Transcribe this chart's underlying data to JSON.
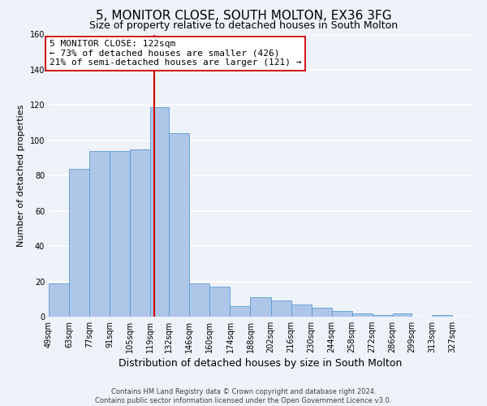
{
  "title": "5, MONITOR CLOSE, SOUTH MOLTON, EX36 3FG",
  "subtitle": "Size of property relative to detached houses in South Molton",
  "xlabel": "Distribution of detached houses by size in South Molton",
  "ylabel": "Number of detached properties",
  "bin_labels": [
    "49sqm",
    "63sqm",
    "77sqm",
    "91sqm",
    "105sqm",
    "119sqm",
    "132sqm",
    "146sqm",
    "160sqm",
    "174sqm",
    "188sqm",
    "202sqm",
    "216sqm",
    "230sqm",
    "244sqm",
    "258sqm",
    "272sqm",
    "286sqm",
    "299sqm",
    "313sqm",
    "327sqm"
  ],
  "bin_edges": [
    49,
    63,
    77,
    91,
    105,
    119,
    132,
    146,
    160,
    174,
    188,
    202,
    216,
    230,
    244,
    258,
    272,
    286,
    299,
    313,
    327
  ],
  "bar_heights": [
    19,
    84,
    94,
    94,
    95,
    119,
    104,
    19,
    17,
    6,
    11,
    9,
    7,
    5,
    3,
    2,
    1,
    2,
    0,
    1,
    0
  ],
  "bar_color": "#aec6e8",
  "bar_edge_color": "#5b9bd5",
  "property_size": 122,
  "vline_color": "#cc0000",
  "annotation_line1": "5 MONITOR CLOSE: 122sqm",
  "annotation_line2": "← 73% of detached houses are smaller (426)",
  "annotation_line3": "21% of semi-detached houses are larger (121) →",
  "annotation_box_color": "#ffffff",
  "annotation_box_edge": "#cc0000",
  "ylim": [
    0,
    160
  ],
  "yticks": [
    0,
    20,
    40,
    60,
    80,
    100,
    120,
    140,
    160
  ],
  "footer": "Contains HM Land Registry data © Crown copyright and database right 2024.\nContains public sector information licensed under the Open Government Licence v3.0.",
  "background_color": "#eef2f9",
  "grid_color": "#ffffff",
  "title_fontsize": 11,
  "subtitle_fontsize": 9,
  "xlabel_fontsize": 9,
  "ylabel_fontsize": 8,
  "tick_fontsize": 7,
  "annotation_fontsize": 8,
  "footer_fontsize": 6
}
